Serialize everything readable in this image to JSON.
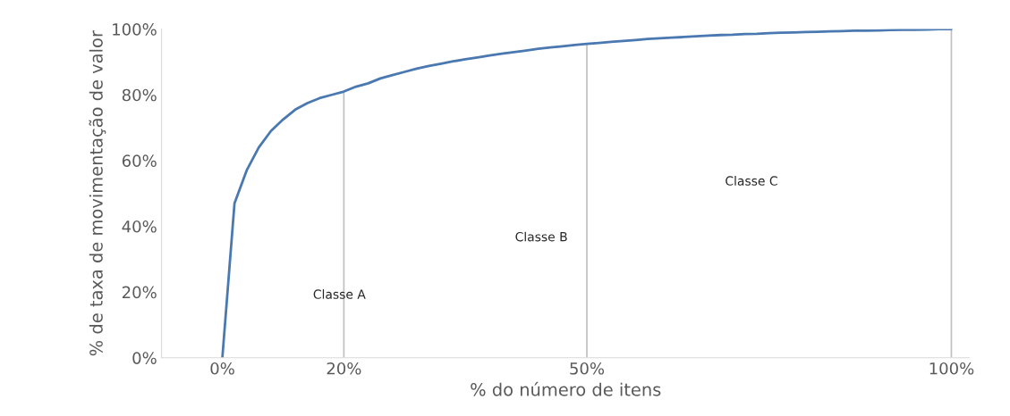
{
  "chart_data": {
    "type": "line",
    "xlabel": "% do número de itens",
    "ylabel": "% de taxa de movimentação de valor",
    "categories": [
      "0%",
      null,
      null,
      null,
      null,
      null,
      null,
      null,
      null,
      null,
      "20%",
      null,
      null,
      null,
      null,
      null,
      null,
      null,
      null,
      null,
      null,
      null,
      null,
      null,
      null,
      null,
      null,
      null,
      null,
      null,
      "50%",
      null,
      null,
      null,
      null,
      null,
      null,
      null,
      null,
      null,
      null,
      null,
      null,
      null,
      null,
      null,
      null,
      null,
      null,
      null,
      null,
      null,
      null,
      null,
      null,
      null,
      null,
      null,
      null,
      null,
      "100%"
    ],
    "series": [
      {
        "color": "#4a78b0",
        "values": [
          0,
          47,
          57,
          64,
          69,
          72.5,
          75.5,
          77.5,
          79,
          80,
          81,
          82.5,
          83.5,
          85,
          86,
          87,
          88,
          88.8,
          89.5,
          90.2,
          90.8,
          91.4,
          92,
          92.5,
          93,
          93.5,
          94,
          94.4,
          94.8,
          95.2,
          95.5,
          95.8,
          96.1,
          96.4,
          96.7,
          97,
          97.2,
          97.4,
          97.6,
          97.8,
          98,
          98.2,
          98.3,
          98.5,
          98.6,
          98.8,
          98.9,
          99,
          99.1,
          99.2,
          99.3,
          99.4,
          99.5,
          99.5,
          99.6,
          99.7,
          99.8,
          99.8,
          99.9,
          100,
          100
        ]
      }
    ],
    "ylim": [
      0,
      100
    ],
    "yticks": [
      {
        "value": 0,
        "label": "0%"
      },
      {
        "value": 20,
        "label": "20%"
      },
      {
        "value": 40,
        "label": "40%"
      },
      {
        "value": 60,
        "label": "60%"
      },
      {
        "value": 80,
        "label": "80%"
      },
      {
        "value": 100,
        "label": "100%"
      }
    ],
    "ref_lines": [
      {
        "axis": "x",
        "value": "20%",
        "color": "#bfbfbf"
      },
      {
        "axis": "x",
        "value": "50%",
        "color": "#bfbfbf"
      },
      {
        "axis": "x",
        "value": "100%",
        "color": "#bfbfbf"
      }
    ],
    "annotations": [
      "Classe A",
      "Classe B",
      "Classe C"
    ],
    "grid": false,
    "marker": "none",
    "line_style": "solid"
  }
}
